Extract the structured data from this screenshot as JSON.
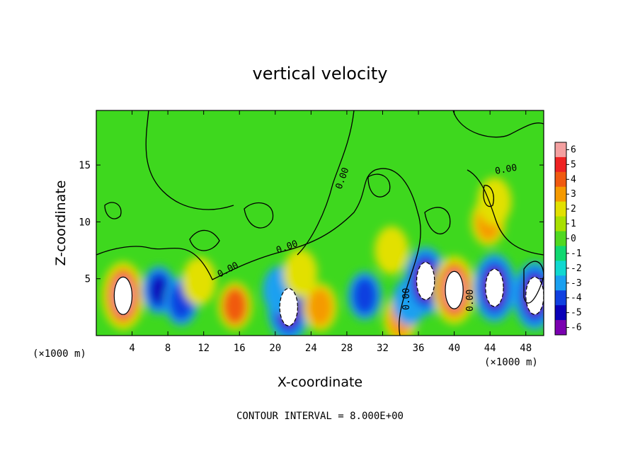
{
  "chart_data": {
    "type": "heatmap",
    "title": "vertical velocity",
    "xlabel": "X-coordinate",
    "ylabel": "Z-coordinate",
    "x_unit": "(×1000 m)",
    "x_unit_right": "(×1000 m)",
    "xlim": [
      0,
      50
    ],
    "ylim": [
      0,
      19.8
    ],
    "x_ticks": [
      4,
      8,
      12,
      16,
      20,
      24,
      28,
      32,
      36,
      40,
      44,
      48
    ],
    "y_ticks": [
      5,
      10,
      15
    ],
    "colorbar": {
      "ticks": [
        6,
        5,
        4,
        3,
        2,
        1,
        0,
        -1,
        -2,
        -3,
        -4,
        -5,
        -6
      ],
      "colors": [
        "#f4a0a0",
        "#ee2222",
        "#f05a10",
        "#f59a00",
        "#e2e000",
        "#a8e000",
        "#50d820",
        "#10d870",
        "#10d8d0",
        "#1aa0f0",
        "#1040e0",
        "#0a00b8",
        "#7a00b0"
      ]
    },
    "contour_labels": [
      "0.00",
      "0.00",
      "0.00",
      "0.00",
      "0.00",
      "0.00"
    ],
    "features": [
      {
        "x": 3,
        "z": 3.5,
        "w": 8
      },
      {
        "x": 7,
        "z": 4,
        "w": -5
      },
      {
        "x": 9.5,
        "z": 3,
        "w": -4
      },
      {
        "x": 11.5,
        "z": 4.8,
        "w": 2
      },
      {
        "x": 15.5,
        "z": 2.6,
        "w": 4
      },
      {
        "x": 21.5,
        "z": 2.5,
        "w": -8
      },
      {
        "x": 20.5,
        "z": 4,
        "w": -3
      },
      {
        "x": 25,
        "z": 2.5,
        "w": 3.5
      },
      {
        "x": 22.8,
        "z": 5.5,
        "w": 2
      },
      {
        "x": 30,
        "z": 3.5,
        "w": -4
      },
      {
        "x": 34,
        "z": 1.5,
        "w": 3
      },
      {
        "x": 35,
        "z": 3,
        "w": -3
      },
      {
        "x": 36.8,
        "z": 4.8,
        "w": -8
      },
      {
        "x": 40,
        "z": 4,
        "w": 8
      },
      {
        "x": 44.5,
        "z": 4.2,
        "w": -8
      },
      {
        "x": 49,
        "z": 3.5,
        "w": -8
      },
      {
        "x": 43.8,
        "z": 10,
        "w": 3
      },
      {
        "x": 44.5,
        "z": 11.8,
        "w": 2
      },
      {
        "x": 33,
        "z": 7.5,
        "w": 2
      }
    ]
  },
  "footer": {
    "contour_interval": "CONTOUR INTERVAL = 8.000E+00"
  }
}
